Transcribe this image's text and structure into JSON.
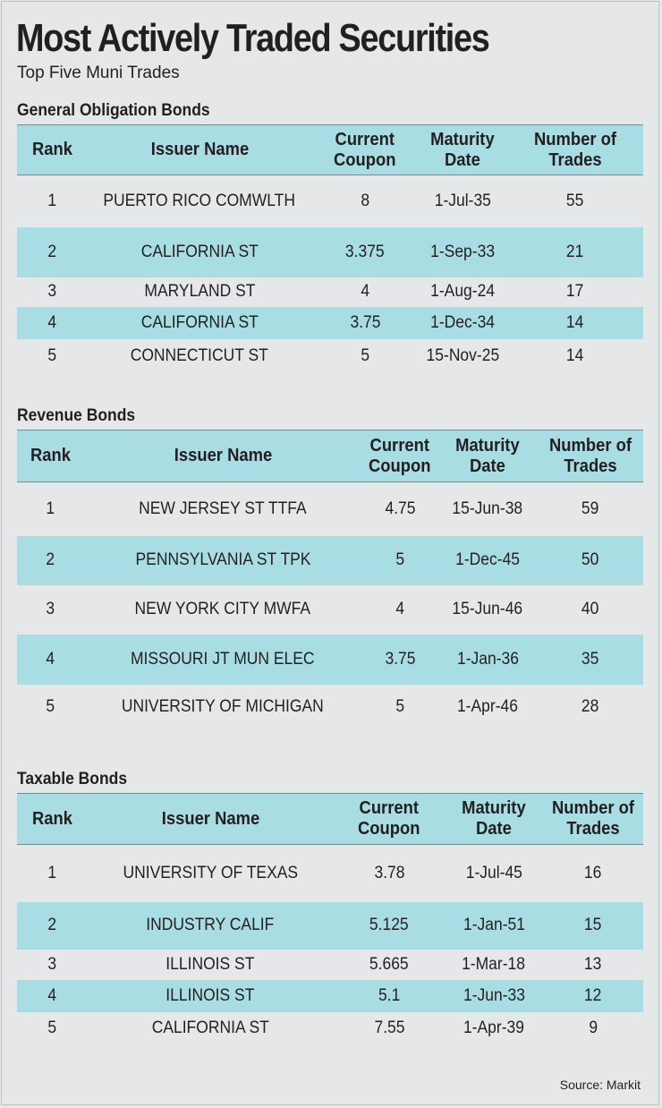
{
  "title": "Most Actively Traded Securities",
  "subtitle": "Top Five Muni Trades",
  "headers": {
    "rank": "Rank",
    "issuer": "Issuer Name",
    "coupon_l1": "Current",
    "coupon_l2": "Coupon",
    "maturity_l1": "Maturity",
    "maturity_l2": "Date",
    "trades_l1": "Number of",
    "trades_l2": "Trades"
  },
  "source": "Source: Markit",
  "chart_data": {
    "type": "table",
    "title": "Most Actively Traded Securities",
    "subtitle": "Top Five Muni Trades",
    "columns": [
      "Rank",
      "Issuer Name",
      "Current Coupon",
      "Maturity Date",
      "Number of Trades"
    ],
    "tables": [
      {
        "name": "General Obligation Bonds",
        "rows": [
          {
            "rank": "1",
            "issuer": "PUERTO RICO COMWLTH",
            "coupon": "8",
            "maturity": "1-Jul-35",
            "trades": "55"
          },
          {
            "rank": "2",
            "issuer": "CALIFORNIA ST",
            "coupon": "3.375",
            "maturity": "1-Sep-33",
            "trades": "21"
          },
          {
            "rank": "3",
            "issuer": "MARYLAND ST",
            "coupon": "4",
            "maturity": "1-Aug-24",
            "trades": "17"
          },
          {
            "rank": "4",
            "issuer": "CALIFORNIA ST",
            "coupon": "3.75",
            "maturity": "1-Dec-34",
            "trades": "14"
          },
          {
            "rank": "5",
            "issuer": "CONNECTICUT ST",
            "coupon": "5",
            "maturity": "15-Nov-25",
            "trades": "14"
          }
        ]
      },
      {
        "name": "Revenue Bonds",
        "rows": [
          {
            "rank": "1",
            "issuer": "NEW JERSEY ST TTFA",
            "coupon": "4.75",
            "maturity": "15-Jun-38",
            "trades": "59"
          },
          {
            "rank": "2",
            "issuer": "PENNSYLVANIA ST TPK",
            "coupon": "5",
            "maturity": "1-Dec-45",
            "trades": "50"
          },
          {
            "rank": "3",
            "issuer": "NEW YORK CITY MWFA",
            "coupon": "4",
            "maturity": "15-Jun-46",
            "trades": "40"
          },
          {
            "rank": "4",
            "issuer": "MISSOURI JT MUN ELEC",
            "coupon": "3.75",
            "maturity": "1-Jan-36",
            "trades": "35"
          },
          {
            "rank": "5",
            "issuer": "UNIVERSITY OF MICHIGAN",
            "coupon": "5",
            "maturity": "1-Apr-46",
            "trades": "28"
          }
        ]
      },
      {
        "name": "Taxable Bonds",
        "rows": [
          {
            "rank": "1",
            "issuer": "UNIVERSITY OF TEXAS",
            "coupon": "3.78",
            "maturity": "1-Jul-45",
            "trades": "16"
          },
          {
            "rank": "2",
            "issuer": "INDUSTRY CALIF",
            "coupon": "5.125",
            "maturity": "1-Jan-51",
            "trades": "15"
          },
          {
            "rank": "3",
            "issuer": "ILLINOIS ST",
            "coupon": "5.665",
            "maturity": "1-Mar-18",
            "trades": "13"
          },
          {
            "rank": "4",
            "issuer": "ILLINOIS ST",
            "coupon": "5.1",
            "maturity": "1-Jun-33",
            "trades": "12"
          },
          {
            "rank": "5",
            "issuer": "CALIFORNIA ST",
            "coupon": "7.55",
            "maturity": "1-Apr-39",
            "trades": "9"
          }
        ]
      }
    ],
    "shaded_rows": [
      2,
      4
    ],
    "colors": {
      "header_band": "#a8dde3",
      "background": "#e6e7e9",
      "text": "#231f20"
    }
  }
}
